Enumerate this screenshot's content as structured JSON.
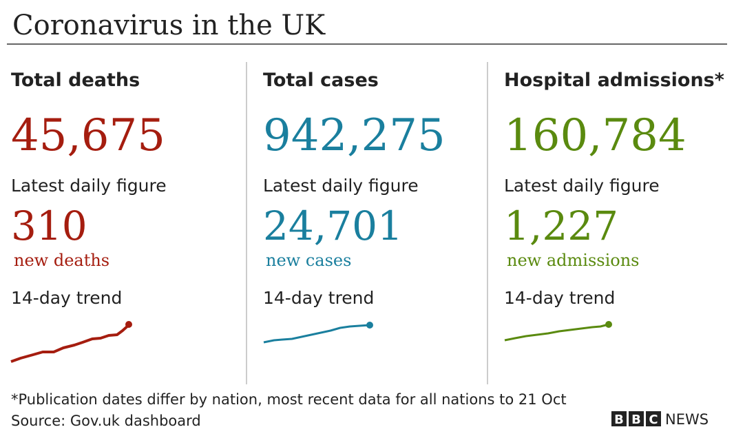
{
  "title": "Coronavirus in the UK",
  "panels": [
    {
      "heading": "Total deaths",
      "total": "45,675",
      "daily_label": "Latest daily figure",
      "daily": "310",
      "daily_unit": "new deaths",
      "trend_label": "14-day trend",
      "color": "#a51d0f"
    },
    {
      "heading": "Total cases",
      "total": "942,275",
      "daily_label": "Latest daily figure",
      "daily": "24,701",
      "daily_unit": "new cases",
      "trend_label": "14-day trend",
      "color": "#1a7f9e"
    },
    {
      "heading": "Hospital admissions*",
      "total": "160,784",
      "daily_label": "Latest daily figure",
      "daily": "1,227",
      "daily_unit": "new admissions",
      "trend_label": "14-day trend",
      "color": "#5a8a0f"
    }
  ],
  "footnote": "*Publication dates differ by nation, most recent data for all nations to 21 Oct",
  "source": "Source: Gov.uk dashboard",
  "logo": {
    "blocks": [
      "B",
      "B",
      "C"
    ],
    "text": "NEWS"
  }
}
